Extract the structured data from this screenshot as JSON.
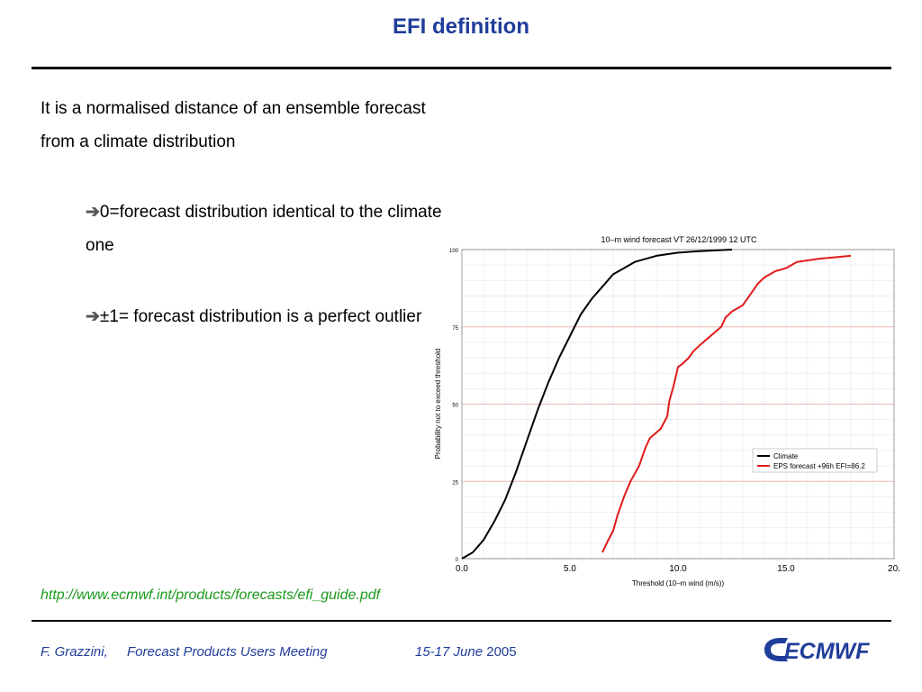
{
  "slide": {
    "title": "EFI definition",
    "para1": "It is a normalised distance of an ensemble forecast  from a climate distribution",
    "bullet1_text": "0=forecast distribution identical to the climate one",
    "bullet2_text": "±1= forecast distribution is a perfect outlier",
    "link": "http://www.ecmwf.int/products/forecasts/efi_guide.pdf",
    "footer_author": "F. Grazzini,",
    "footer_meeting": "Forecast Products Users Meeting",
    "footer_dates": "15-17 June",
    "footer_year": "2005",
    "logo_text": "ECMWF",
    "title_color": "#1f3d9a",
    "link_color": "#1a9a1a",
    "arrow_icon": "right-arrow-icon"
  },
  "chart_data": {
    "type": "line",
    "title": "10–m wind forecast VT 26/12/1999 12 UTC",
    "xlabel": "Threshold (10–m wind (m/s))",
    "ylabel": "Probability not to exceed threshold",
    "xlim": [
      0,
      20
    ],
    "ylim": [
      0,
      100
    ],
    "x_ticks": [
      "0.0",
      "5.0",
      "10.0",
      "15.0",
      "20."
    ],
    "y_ticks": [
      "0",
      "25",
      "50",
      "75",
      "100"
    ],
    "grid": true,
    "legend_position": "bottom-right",
    "series": [
      {
        "name": "Climate",
        "color": "#000000",
        "points": [
          [
            0.0,
            0
          ],
          [
            0.5,
            2
          ],
          [
            1.0,
            6
          ],
          [
            1.5,
            12
          ],
          [
            2.0,
            19
          ],
          [
            2.5,
            28
          ],
          [
            3.0,
            38
          ],
          [
            3.5,
            48
          ],
          [
            4.0,
            57
          ],
          [
            4.5,
            65
          ],
          [
            5.0,
            72
          ],
          [
            5.5,
            79
          ],
          [
            6.0,
            84
          ],
          [
            6.5,
            88
          ],
          [
            7.0,
            92
          ],
          [
            7.5,
            94
          ],
          [
            8.0,
            96
          ],
          [
            8.5,
            97
          ],
          [
            9.0,
            98
          ],
          [
            10.0,
            99
          ],
          [
            11.0,
            99.5
          ],
          [
            12.5,
            100
          ]
        ]
      },
      {
        "name": "EPS forecast +96h EFI=86.2",
        "color": "#e01a1a",
        "points": [
          [
            6.5,
            2
          ],
          [
            6.7,
            5
          ],
          [
            7.0,
            9
          ],
          [
            7.2,
            14
          ],
          [
            7.5,
            20
          ],
          [
            7.8,
            25
          ],
          [
            8.2,
            30
          ],
          [
            8.5,
            36
          ],
          [
            8.7,
            39
          ],
          [
            9.2,
            42
          ],
          [
            9.5,
            46
          ],
          [
            9.6,
            51
          ],
          [
            9.8,
            56
          ],
          [
            10.0,
            62
          ],
          [
            10.2,
            63
          ],
          [
            10.5,
            65
          ],
          [
            10.7,
            67
          ],
          [
            11.0,
            69
          ],
          [
            11.5,
            72
          ],
          [
            12.0,
            75
          ],
          [
            12.2,
            78
          ],
          [
            12.5,
            80
          ],
          [
            13.0,
            82
          ],
          [
            13.3,
            85
          ],
          [
            13.5,
            87
          ],
          [
            13.7,
            89
          ],
          [
            14.0,
            91
          ],
          [
            14.5,
            93
          ],
          [
            15.0,
            94
          ],
          [
            15.5,
            96
          ],
          [
            16.5,
            97
          ],
          [
            18.0,
            98
          ]
        ]
      }
    ]
  }
}
